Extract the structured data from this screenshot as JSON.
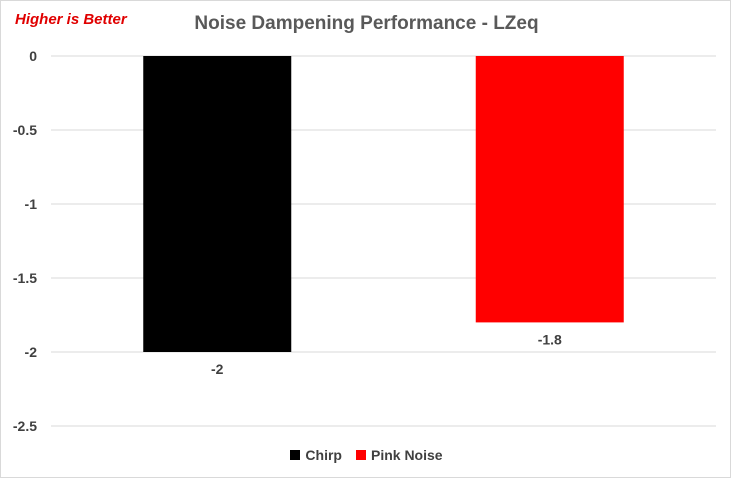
{
  "chart_data": {
    "type": "bar",
    "title": "Noise Dampening Performance - LZeq",
    "annotation": "Higher is Better",
    "ylim": [
      -2.5,
      0
    ],
    "yticks": [
      0,
      -0.5,
      -1,
      -1.5,
      -2,
      -2.5
    ],
    "ytick_labels": [
      "0",
      "-0.5",
      "-1",
      "-1.5",
      "-2",
      "-2.5"
    ],
    "grid": true,
    "legend_position": "bottom",
    "series": [
      {
        "name": "Chirp",
        "value": -2,
        "label": "-2",
        "color": "#000000"
      },
      {
        "name": "Pink Noise",
        "value": -1.8,
        "label": "-1.8",
        "color": "#ff0000"
      }
    ]
  },
  "colors": {
    "title": "#595959",
    "annotation": "#e00000",
    "gridline": "#d9d9d9",
    "axis_text": "#404040"
  }
}
